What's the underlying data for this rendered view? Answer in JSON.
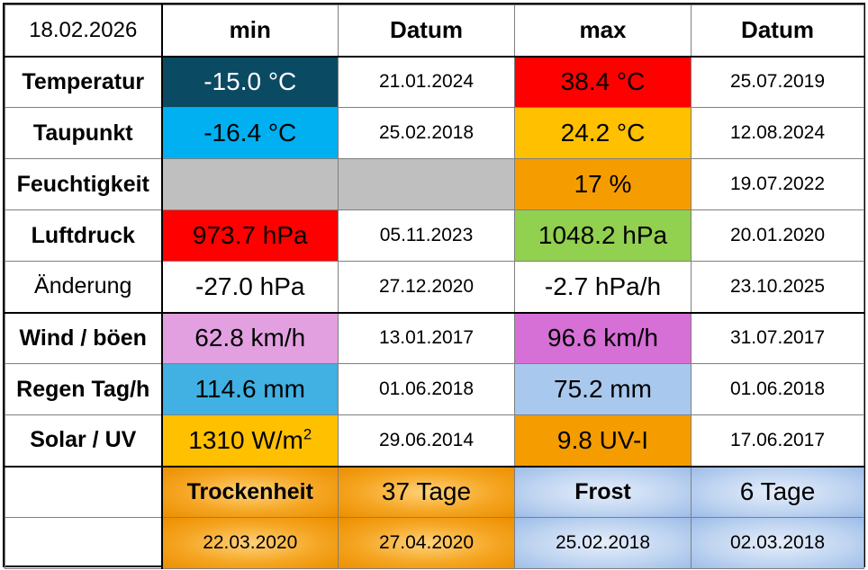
{
  "header": {
    "date": "18.02.2026",
    "min_label": "min",
    "min_date_label": "Datum",
    "max_label": "max",
    "max_date_label": "Datum"
  },
  "rows": [
    {
      "label": "Temperatur",
      "min": "-15.0 °C",
      "min_date": "21.01.2024",
      "max": "38.4 °C",
      "max_date": "25.07.2019",
      "min_color": "#0b4a63",
      "max_color": "#ff0000"
    },
    {
      "label": "Taupunkt",
      "min": "-16.4 °C",
      "min_date": "25.02.2018",
      "max": "24.2 °C",
      "max_date": "12.08.2024",
      "min_color": "#00b0f0",
      "max_color": "#ffc000"
    },
    {
      "label": "Feuchtigkeit",
      "min": "",
      "min_date": "",
      "max": "17 %",
      "max_date": "19.07.2022",
      "min_color": "#bfbfbf",
      "max_color": "#f59d00"
    },
    {
      "label": "Luftdruck",
      "min": "973.7 hPa",
      "min_date": "05.11.2023",
      "max": "1048.2 hPa",
      "max_date": "20.01.2020",
      "min_color": "#ff0000",
      "max_color": "#92d050"
    },
    {
      "label": "Änderung",
      "min": "-27.0 hPa",
      "min_date": "27.12.2020",
      "max": "-2.7 hPa/h",
      "max_date": "23.10.2025",
      "min_color": "#ffffff",
      "max_color": "#ffffff"
    },
    {
      "label": "Wind / böen",
      "min": "62.8 km/h",
      "min_date": "13.01.2017",
      "max": "96.6 km/h",
      "max_date": "31.07.2017",
      "min_color": "#e2a0e0",
      "max_color": "#d66fd6"
    },
    {
      "label": "Regen Tag/h",
      "min": "114.6 mm",
      "min_date": "01.06.2018",
      "max": "75.2 mm",
      "max_date": "01.06.2018",
      "min_color": "#41b0e2",
      "max_color": "#a9c8ee"
    },
    {
      "label": "Solar / UV",
      "min": "1310 W/m",
      "min_sup": "2",
      "min_date": "29.06.2014",
      "max": "9.8 UV-I",
      "max_date": "17.06.2017",
      "min_color": "#ffc000",
      "max_color": "#f59d00"
    }
  ],
  "drought": {
    "label": "Trockenheit",
    "value": "37 Tage",
    "start": "22.03.2020",
    "end": "27.04.2020"
  },
  "frost": {
    "label": "Frost",
    "value": "6 Tage",
    "start": "25.02.2018",
    "end": "02.03.2018"
  }
}
